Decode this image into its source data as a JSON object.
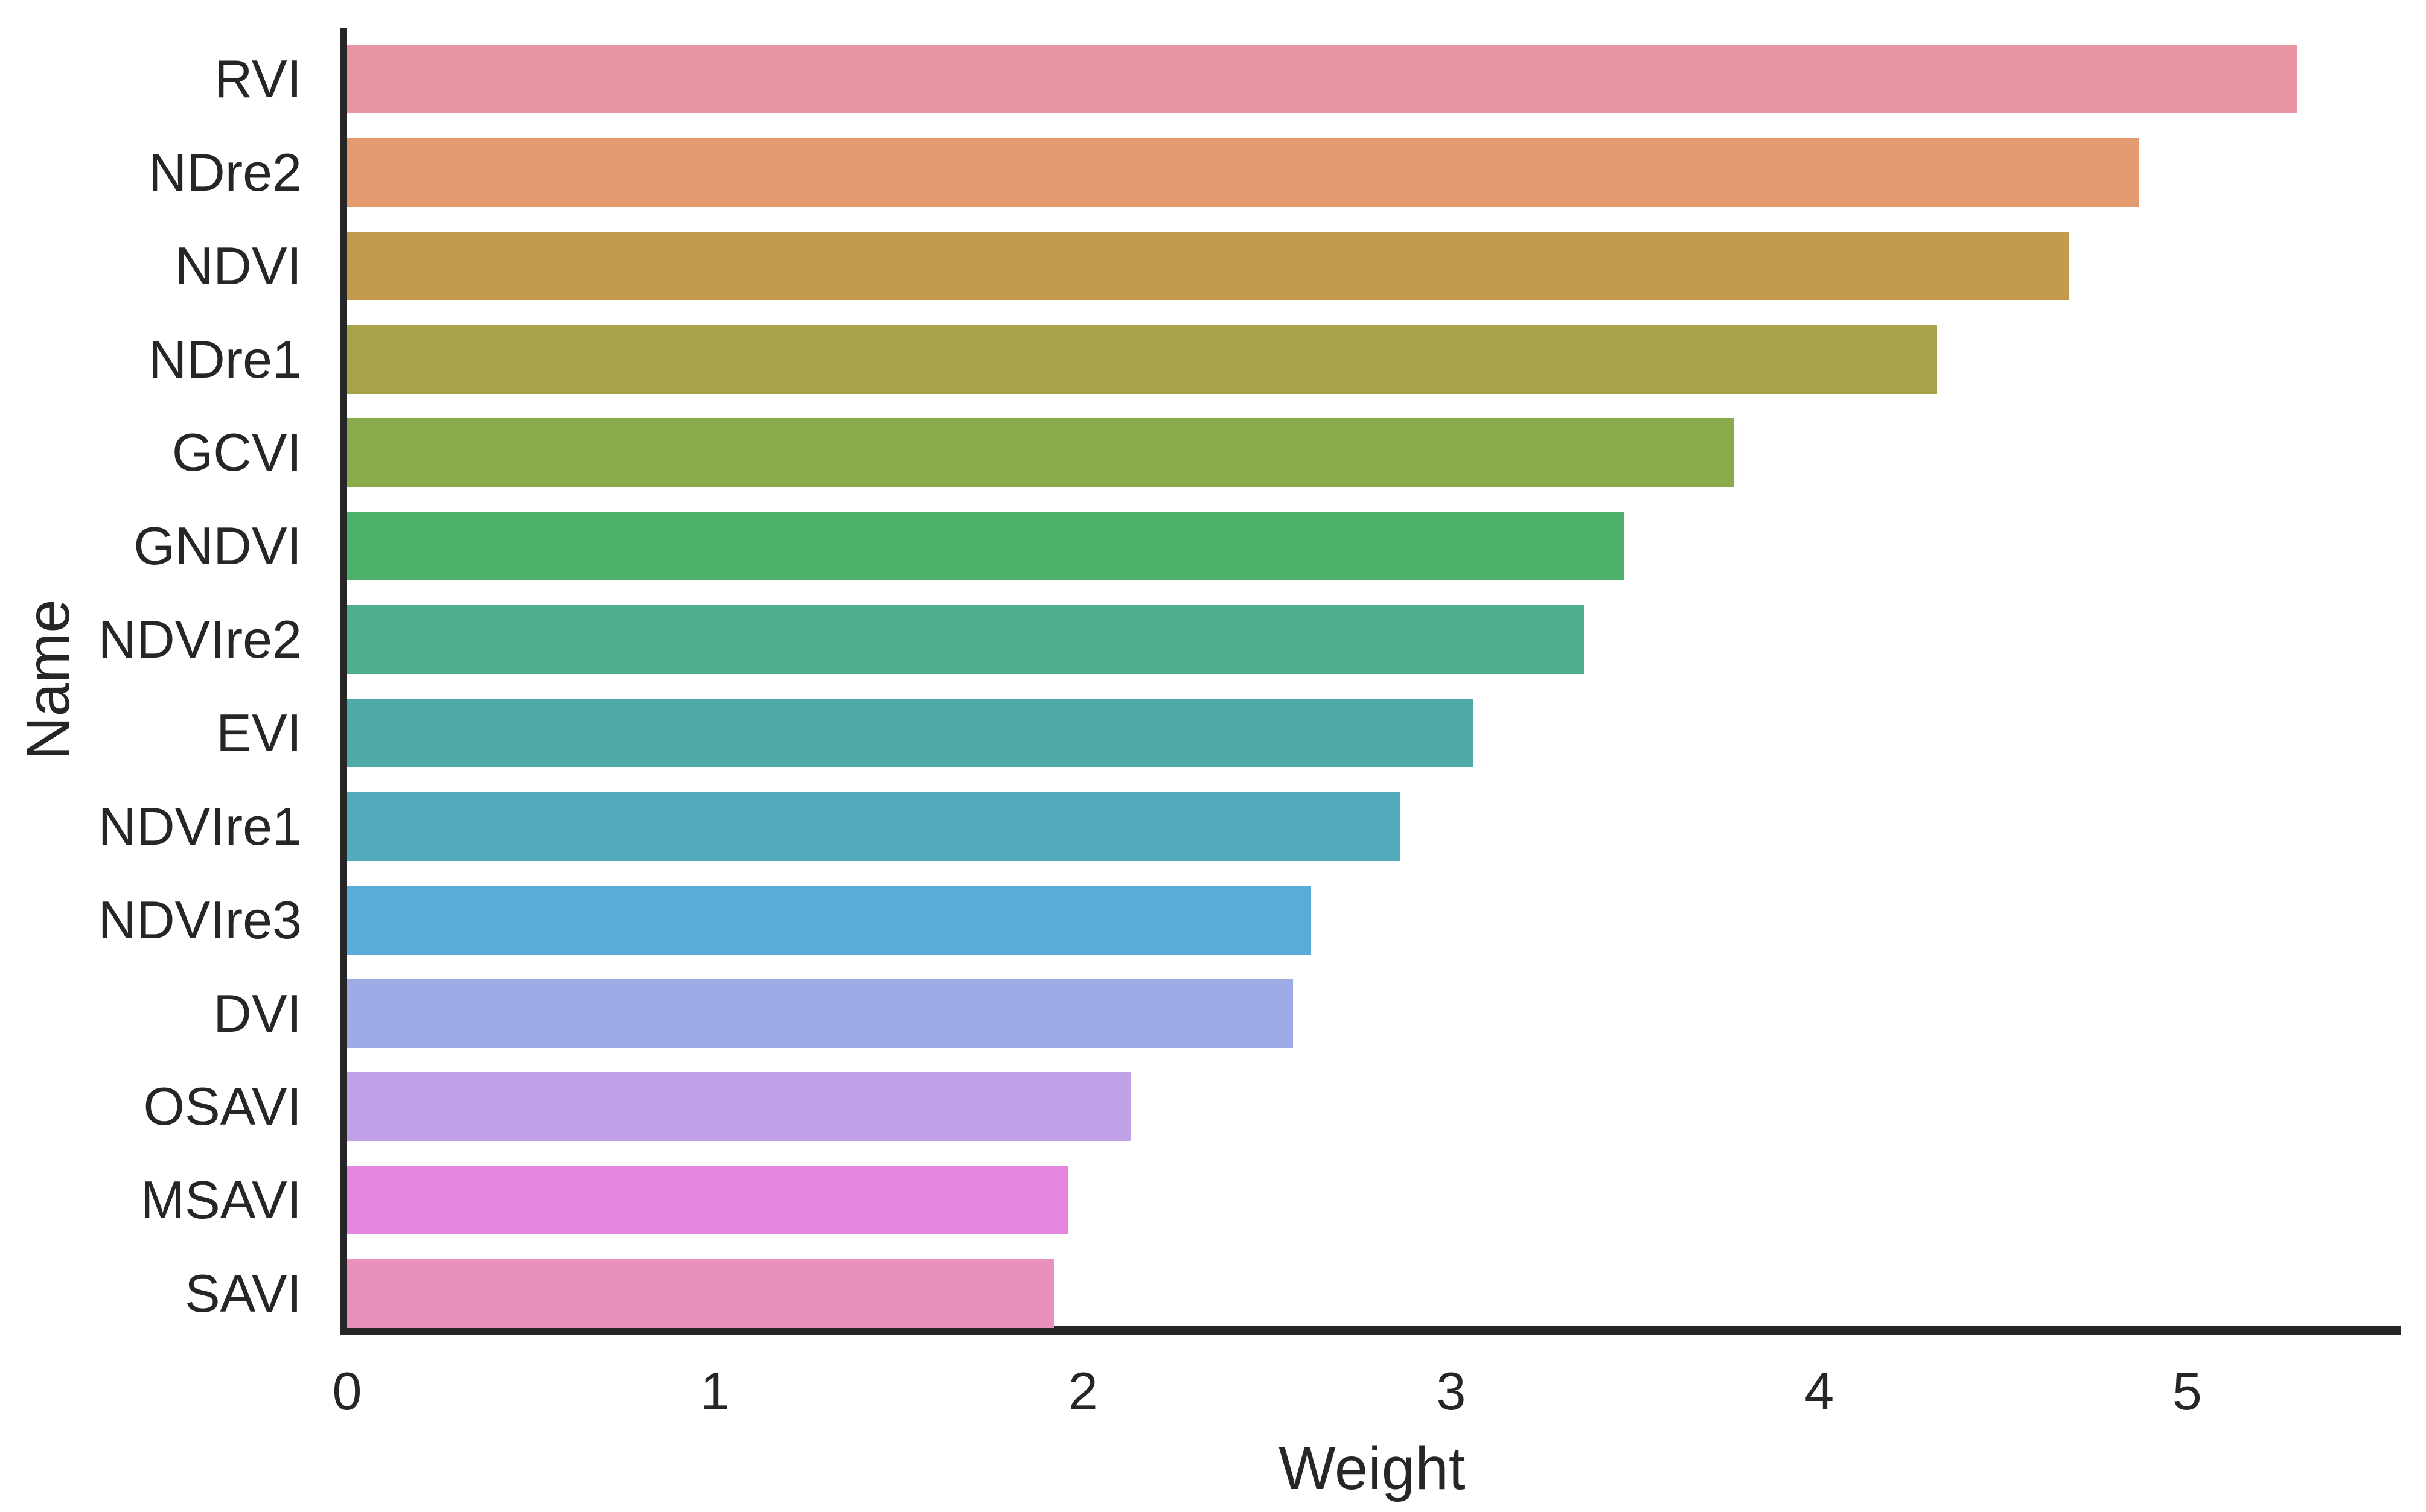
{
  "chart_data": {
    "type": "bar",
    "orientation": "horizontal",
    "xlabel": "Weight",
    "ylabel": "Name",
    "xlim": [
      0,
      5.58
    ],
    "x_ticks": [
      0,
      1,
      2,
      3,
      4,
      5
    ],
    "x_tick_labels": [
      "0",
      "1",
      "2",
      "3",
      "4",
      "5"
    ],
    "grid": false,
    "legend": null,
    "categories": [
      "RVI",
      "NDre2",
      "NDVI",
      "NDre1",
      "GCVI",
      "GNDVI",
      "NDVIre2",
      "EVI",
      "NDVIre1",
      "NDVIre3",
      "DVI",
      "OSAVI",
      "MSAVI",
      "SAVI"
    ],
    "values": [
      5.3,
      4.87,
      4.68,
      4.32,
      3.77,
      3.47,
      3.36,
      3.06,
      2.86,
      2.62,
      2.57,
      2.13,
      1.96,
      1.92
    ],
    "bar_colors": [
      "#e896a2",
      "#e39a6e",
      "#c49a4d",
      "#a8a24b",
      "#8aab4c",
      "#4db269",
      "#4dae8e",
      "#4ea9a7",
      "#52acbc",
      "#5aabd8",
      "#9fabe6",
      "#c0a0e6",
      "#e587de",
      "#e791bc"
    ]
  },
  "styles": {
    "axis_color": "#262626",
    "text_color": "#262626",
    "background": "#ffffff"
  }
}
